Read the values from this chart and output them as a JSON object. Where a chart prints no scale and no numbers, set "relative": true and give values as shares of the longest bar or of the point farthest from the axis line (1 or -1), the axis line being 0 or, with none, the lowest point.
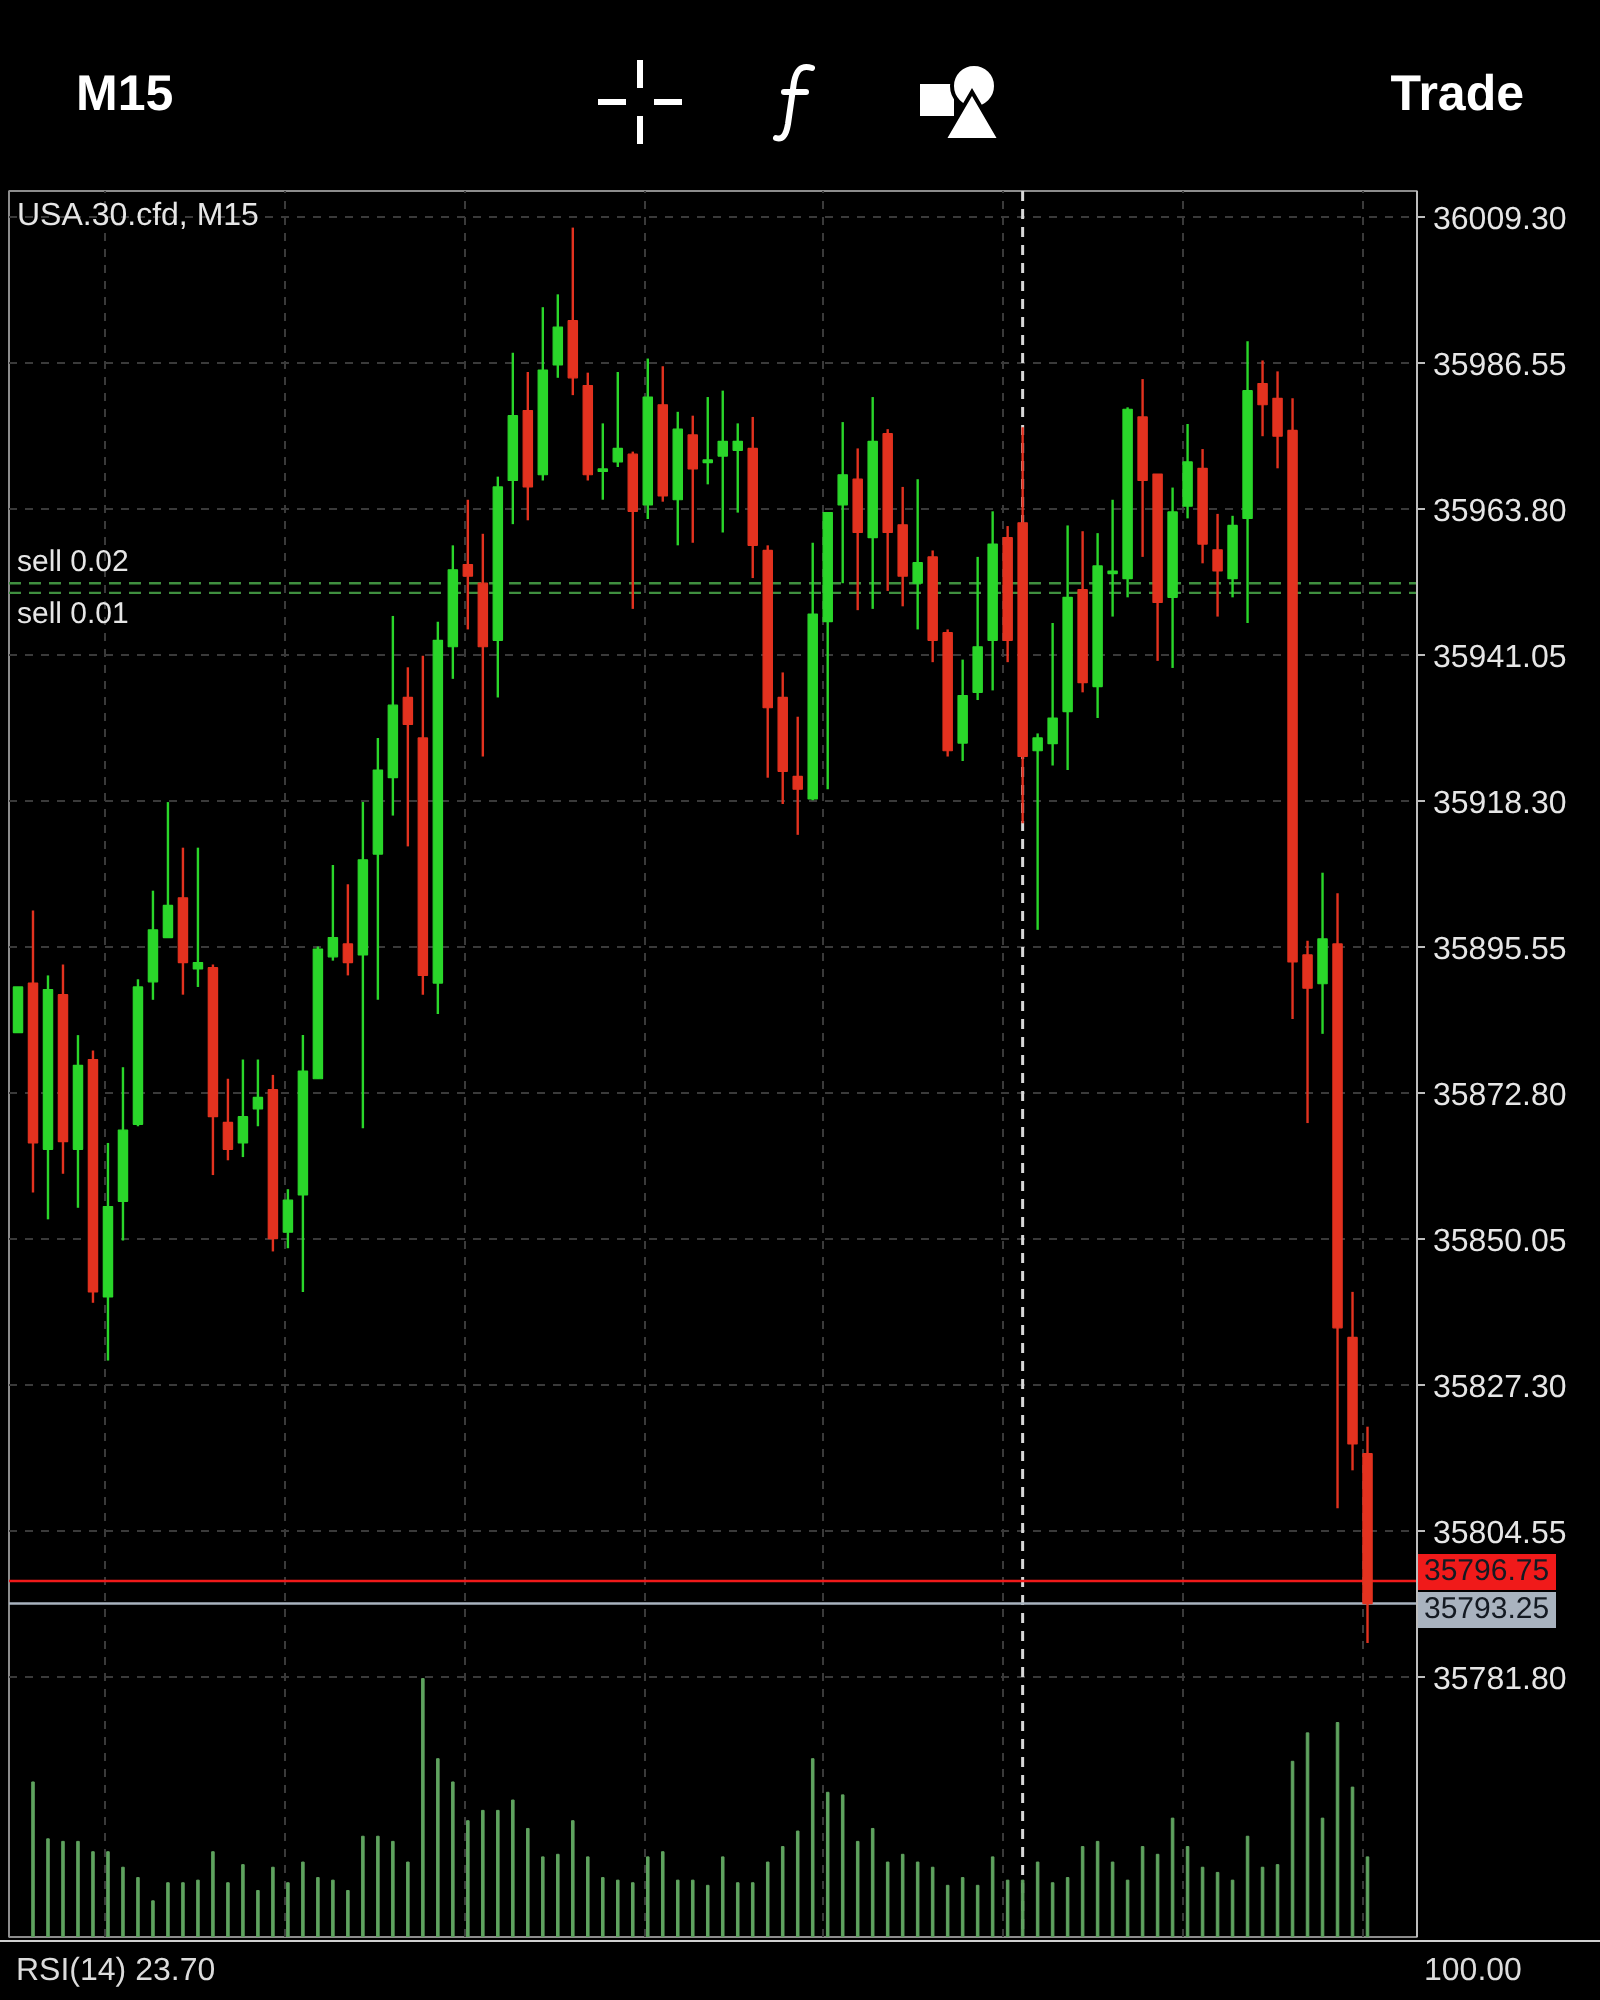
{
  "chart_data": [
    {
      "type": "candlestick",
      "title": "USA.30.cfd, M15",
      "categories": [
        null,
        null,
        null,
        null,
        null,
        null,
        null,
        null,
        null,
        null,
        null,
        null,
        null,
        null,
        null,
        null,
        null,
        null,
        null,
        null,
        null,
        null,
        null,
        null,
        null,
        null,
        null,
        null,
        null,
        null,
        null,
        null,
        null,
        null,
        null,
        null,
        null,
        null,
        null,
        null,
        null,
        null,
        null,
        null,
        null,
        null,
        null,
        null,
        null,
        null,
        null,
        null,
        null,
        null,
        null,
        null,
        null,
        null,
        null,
        null,
        null,
        null,
        null,
        null,
        null,
        null,
        null,
        null,
        null,
        null,
        null,
        null,
        null,
        null,
        null,
        null,
        null,
        null,
        null,
        null,
        null,
        null,
        null,
        null,
        null,
        null,
        null,
        null,
        null,
        null,
        null
      ],
      "ohlc": [
        [
          35882.2,
          35889.3,
          35882.2,
          35889.3
        ],
        [
          35889.9,
          35901.2,
          35857.3,
          35865.0
        ],
        [
          35864.0,
          35891.1,
          35853.1,
          35888.9
        ],
        [
          35888.1,
          35892.8,
          35860.2,
          35865.2
        ],
        [
          35864.0,
          35881.8,
          35854.9,
          35877.1
        ],
        [
          35878.0,
          35879.4,
          35840.1,
          35841.8
        ],
        [
          35841.0,
          35865.0,
          35831.1,
          35855.1
        ],
        [
          35855.9,
          35876.8,
          35849.8,
          35867.0
        ],
        [
          35867.9,
          35890.5,
          35867.6,
          35889.3
        ],
        [
          35890.1,
          35904.3,
          35887.3,
          35898.2
        ],
        [
          35897.0,
          35918.1,
          35897.0,
          35902.0
        ],
        [
          35903.2,
          35911.0,
          35888.1,
          35893.1
        ],
        [
          35892.1,
          35911.0,
          35889.3,
          35893.1
        ],
        [
          35892.3,
          35892.8,
          35860.0,
          35869.1
        ],
        [
          35868.2,
          35875.0,
          35862.3,
          35864.0
        ],
        [
          35865.0,
          35878.0,
          35862.8,
          35869.1
        ],
        [
          35870.3,
          35878.0,
          35867.6,
          35872.1
        ],
        [
          35873.3,
          35875.6,
          35848.1,
          35850.1
        ],
        [
          35851.1,
          35857.8,
          35848.6,
          35856.1
        ],
        [
          35856.9,
          35881.8,
          35841.8,
          35876.2
        ],
        [
          35875.0,
          35895.6,
          35875.0,
          35895.2
        ],
        [
          35894.0,
          35908.3,
          35893.4,
          35897.0
        ],
        [
          35896.0,
          35905.3,
          35891.1,
          35893.1
        ],
        [
          35894.3,
          35918.1,
          35867.3,
          35909.1
        ],
        [
          35910.0,
          35928.1,
          35887.3,
          35923.1
        ],
        [
          35921.9,
          35947.1,
          35916.0,
          35933.2
        ],
        [
          35934.4,
          35939.1,
          35911.2,
          35930.2
        ],
        [
          35928.1,
          35940.9,
          35888.1,
          35891.1
        ],
        [
          35889.9,
          35946.2,
          35885.1,
          35943.3
        ],
        [
          35942.3,
          35958.1,
          35937.3,
          35954.3
        ],
        [
          35955.1,
          35965.2,
          35945.0,
          35953.3
        ],
        [
          35952.2,
          35959.9,
          35925.2,
          35942.3
        ],
        [
          35943.3,
          35968.8,
          35934.4,
          35967.2
        ],
        [
          35968.2,
          35988.1,
          35961.4,
          35978.3
        ],
        [
          35979.1,
          35985.1,
          35962.0,
          35967.2
        ],
        [
          35969.1,
          35995.2,
          35968.2,
          35985.4
        ],
        [
          35986.2,
          35997.2,
          35984.2,
          35992.1
        ],
        [
          35993.1,
          36007.6,
          35981.5,
          35984.2
        ],
        [
          35983.0,
          35985.0,
          35968.2,
          35969.1
        ],
        [
          35969.6,
          35977.1,
          35965.2,
          35970.0
        ],
        [
          35971.1,
          35985.1,
          35970.3,
          35973.2
        ],
        [
          35972.3,
          35972.7,
          35948.2,
          35963.4
        ],
        [
          35964.4,
          35987.2,
          35962.2,
          35981.2
        ],
        [
          35980.0,
          35986.0,
          35964.9,
          35965.8
        ],
        [
          35965.2,
          35978.9,
          35958.1,
          35976.2
        ],
        [
          35975.3,
          35978.3,
          35958.5,
          35970.0
        ],
        [
          35971.0,
          35981.2,
          35967.6,
          35971.4
        ],
        [
          35972.0,
          35982.2,
          35960.1,
          35974.3
        ],
        [
          35972.9,
          35977.1,
          35963.2,
          35974.3
        ],
        [
          35973.2,
          35978.1,
          35953.0,
          35958.1
        ],
        [
          35957.3,
          35958.1,
          35921.9,
          35932.8
        ],
        [
          35934.4,
          35938.3,
          35917.8,
          35922.9
        ],
        [
          35922.1,
          35931.4,
          35913.0,
          35920.1
        ],
        [
          35918.6,
          35958.5,
          35918.4,
          35947.4
        ],
        [
          35946.2,
          35963.2,
          35920.1,
          35963.2
        ],
        [
          35964.4,
          35977.3,
          35952.2,
          35969.1
        ],
        [
          35968.4,
          35973.2,
          35948.0,
          35960.1
        ],
        [
          35959.3,
          35981.2,
          35948.2,
          35974.3
        ],
        [
          35975.5,
          35976.2,
          35951.0,
          35960.1
        ],
        [
          35961.3,
          35967.2,
          35948.6,
          35953.3
        ],
        [
          35952.2,
          35968.4,
          35945.0,
          35955.4
        ],
        [
          35956.3,
          35957.3,
          35939.9,
          35943.3
        ],
        [
          35944.5,
          35945.0,
          35925.2,
          35926.1
        ],
        [
          35927.3,
          35940.3,
          35924.5,
          35934.7
        ],
        [
          35935.2,
          35956.3,
          35934.0,
          35942.3
        ],
        [
          35943.3,
          35963.4,
          35935.5,
          35958.3
        ],
        [
          35959.3,
          35961.1,
          35939.9,
          35943.3
        ],
        [
          35961.6,
          35976.5,
          35914.8,
          35925.2
        ],
        [
          35926.1,
          35928.8,
          35898.2,
          35928.1
        ],
        [
          35927.2,
          35946.0,
          35923.8,
          35931.2
        ],
        [
          35932.2,
          35961.2,
          35923.1,
          35950.0
        ],
        [
          35951.2,
          35960.3,
          35935.2,
          35936.7
        ],
        [
          35936.1,
          35960.0,
          35931.2,
          35954.9
        ],
        [
          35953.7,
          35965.2,
          35947.0,
          35954.1
        ],
        [
          35952.9,
          35979.6,
          35950.0,
          35979.3
        ],
        [
          35978.1,
          35984.0,
          35956.3,
          35968.2
        ],
        [
          35969.2,
          35969.2,
          35940.1,
          35949.2
        ],
        [
          35950.0,
          35967.1,
          35939.0,
          35963.3
        ],
        [
          35964.2,
          35977.0,
          35962.3,
          35971.1
        ],
        [
          35970.1,
          35973.1,
          35955.3,
          35958.3
        ],
        [
          35957.4,
          35963.0,
          35947.0,
          35954.1
        ],
        [
          35952.9,
          35962.7,
          35950.0,
          35961.2
        ],
        [
          35962.3,
          35989.9,
          35946.0,
          35982.2
        ],
        [
          35983.3,
          35986.9,
          35975.1,
          35980.0
        ],
        [
          35981.0,
          35985.2,
          35970.1,
          35975.1
        ],
        [
          35976.0,
          35981.0,
          35884.3,
          35893.2
        ],
        [
          35894.3,
          35896.5,
          35868.1,
          35889.1
        ],
        [
          35889.8,
          35907.1,
          35882.0,
          35896.8
        ],
        [
          35896.0,
          35903.9,
          35808.1,
          35836.2
        ],
        [
          35834.7,
          35841.8,
          35814.0,
          35818.1
        ],
        [
          35816.6,
          35820.8,
          35787.1,
          35793.25
        ]
      ],
      "colors": [
        "#2ad62a",
        "#e3321f",
        "#2ad62a",
        "#e3321f",
        "#2ad62a",
        "#e3321f",
        "#2ad62a",
        "#2ad62a",
        "#2ad62a",
        "#2ad62a",
        "#2ad62a",
        "#e3321f",
        "#2ad62a",
        "#e3321f",
        "#e3321f",
        "#2ad62a",
        "#2ad62a",
        "#e3321f",
        "#2ad62a",
        "#2ad62a",
        "#2ad62a",
        "#2ad62a",
        "#e3321f",
        "#2ad62a",
        "#2ad62a",
        "#2ad62a",
        "#e3321f",
        "#e3321f",
        "#2ad62a",
        "#2ad62a",
        "#e3321f",
        "#e3321f",
        "#2ad62a",
        "#2ad62a",
        "#e3321f",
        "#2ad62a",
        "#2ad62a",
        "#e3321f",
        "#e3321f",
        "#2ad62a",
        "#2ad62a",
        "#e3321f",
        "#2ad62a",
        "#e3321f",
        "#2ad62a",
        "#e3321f",
        "#2ad62a",
        "#2ad62a",
        "#2ad62a",
        "#e3321f",
        "#e3321f",
        "#e3321f",
        "#e3321f",
        "#2ad62a",
        "#2ad62a",
        "#2ad62a",
        "#e3321f",
        "#2ad62a",
        "#e3321f",
        "#e3321f",
        "#2ad62a",
        "#e3321f",
        "#e3321f",
        "#2ad62a",
        "#2ad62a",
        "#2ad62a",
        "#e3321f",
        "#e3321f",
        "#2ad62a",
        "#2ad62a",
        "#2ad62a",
        "#e3321f",
        "#2ad62a",
        "#2ad62a",
        "#2ad62a",
        "#e3321f",
        "#e3321f",
        "#2ad62a",
        "#2ad62a",
        "#e3321f",
        "#e3321f",
        "#2ad62a",
        "#2ad62a",
        "#e3321f",
        "#e3321f",
        "#e3321f",
        "#e3321f",
        "#2ad62a",
        "#e3321f",
        "#e3321f",
        "#e3321f"
      ],
      "ylim": [
        35741.3,
        36013.3
      ],
      "yticks": [
        {
          "value": 35781.8,
          "label": "35781.80"
        },
        35804.55,
        {
          "value": 35827.3,
          "label": "35827.30"
        },
        35850.05,
        {
          "value": 35872.8,
          "label": "35872.80"
        },
        35895.55,
        {
          "value": 35918.3,
          "label": "35918.30"
        },
        35941.05,
        {
          "value": 35963.8,
          "label": "35963.80"
        },
        35986.55,
        {
          "value": 36009.3,
          "label": "36009.30"
        }
      ],
      "grid": true,
      "tick_labels": "y",
      "ref_lines": [
        {
          "axis": "y",
          "value": 35952.2,
          "label": "sell 0.02",
          "color": "#3f8f3f",
          "line_style": "dashed"
        },
        {
          "axis": "y",
          "value": 35950.7,
          "label": "sell 0.01",
          "color": "#3f8f3f",
          "line_style": "dashed"
        },
        {
          "axis": "y",
          "value": 35796.75,
          "label": "35796.75",
          "color": "#f01a1a"
        },
        {
          "axis": "y",
          "value": 35793.25,
          "label": "35793.25",
          "color": "#a9b3bf"
        }
      ],
      "annotations": [
        "M15",
        "Trade",
        "RSI(14) 23.70",
        "100.00"
      ]
    },
    {
      "type": "bar",
      "relative": true,
      "categories": [
        null,
        null,
        null,
        null,
        null,
        null,
        null,
        null,
        null,
        null,
        null,
        null,
        null,
        null,
        null,
        null,
        null,
        null,
        null,
        null,
        null,
        null,
        null,
        null,
        null,
        null,
        null,
        null,
        null,
        null,
        null,
        null,
        null,
        null,
        null,
        null,
        null,
        null,
        null,
        null,
        null,
        null,
        null,
        null,
        null,
        null,
        null,
        null,
        null,
        null,
        null,
        null,
        null,
        null,
        null,
        null,
        null,
        null,
        null,
        null,
        null,
        null,
        null,
        null,
        null,
        null,
        null,
        null,
        null,
        null,
        null,
        null,
        null,
        null,
        null,
        null,
        null,
        null,
        null,
        null,
        null,
        null,
        null,
        null,
        null,
        null,
        null,
        null,
        null,
        null,
        null
      ],
      "values": [
        null,
        0.6,
        0.38,
        0.37,
        0.37,
        0.33,
        0.33,
        0.27,
        0.23,
        0.14,
        0.21,
        0.21,
        0.22,
        0.33,
        0.21,
        0.28,
        0.18,
        0.27,
        0.21,
        0.29,
        0.23,
        0.22,
        0.18,
        0.39,
        0.39,
        0.37,
        0.29,
        1,
        0.69,
        0.6,
        0.45,
        0.49,
        0.49,
        0.53,
        0.42,
        0.31,
        0.32,
        0.45,
        0.31,
        0.23,
        0.22,
        0.21,
        0.31,
        0.33,
        0.22,
        0.22,
        0.2,
        0.31,
        0.21,
        0.21,
        0.29,
        0.35,
        0.41,
        0.69,
        0.56,
        0.55,
        0.37,
        0.42,
        0.29,
        0.32,
        0.29,
        0.27,
        0.2,
        0.23,
        0.2,
        0.31,
        0.22,
        0.22,
        0.29,
        0.21,
        0.23,
        0.35,
        0.37,
        0.29,
        0.22,
        0.35,
        0.32,
        0.46,
        0.35,
        0.27,
        0.25,
        0.22,
        0.39,
        0.27,
        0.28,
        0.68,
        0.79,
        0.46,
        0.83,
        0.58,
        0.31
      ],
      "color": "#5fa35f"
    }
  ]
}
